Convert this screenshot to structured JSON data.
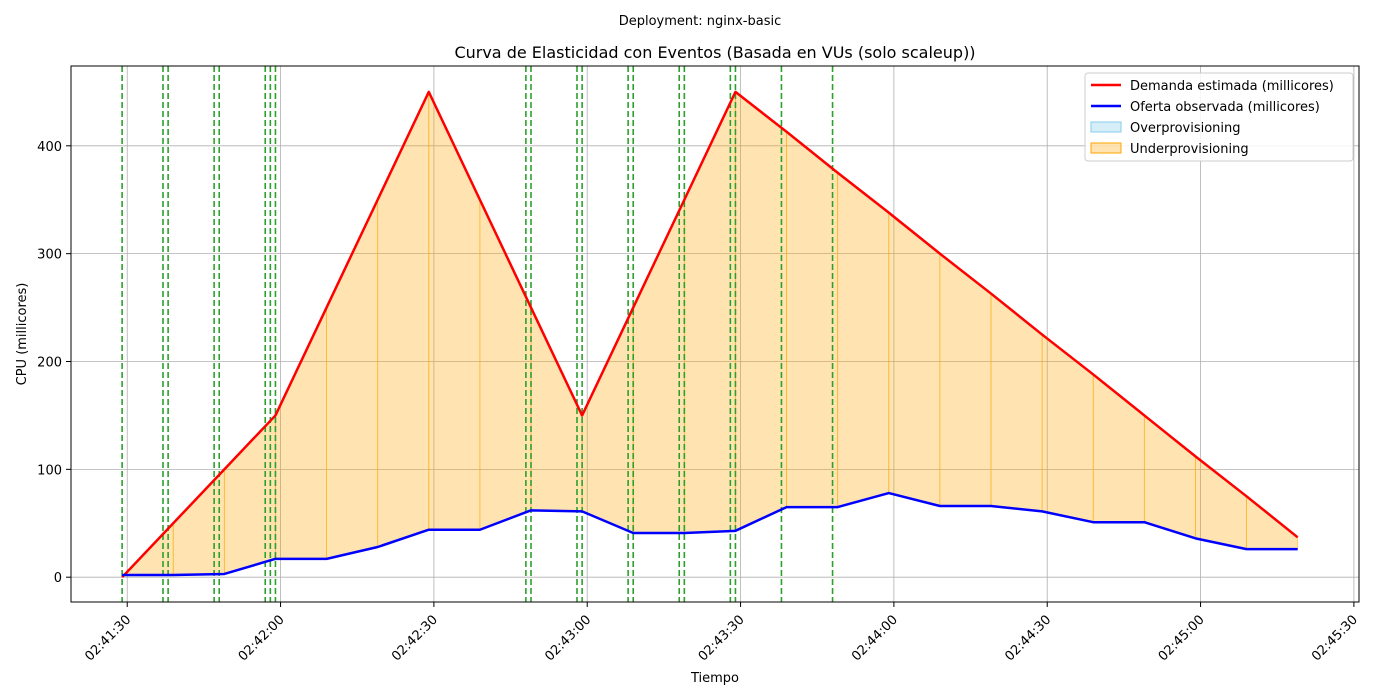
{
  "suptitle": "Deployment: nginx-basic",
  "chart_data": {
    "type": "line",
    "title": "Curva de Elasticidad con Eventos (Basada en VUs (solo scaleup))",
    "xlabel": "Tiempo",
    "ylabel": "CPU (millicores)",
    "xlim": [
      "02:41:19",
      "02:45:31"
    ],
    "ylim": [
      -23,
      474
    ],
    "grid": true,
    "legend_position": "upper right",
    "x_ticks": [
      "02:41:30",
      "02:42:00",
      "02:42:30",
      "02:43:00",
      "02:43:30",
      "02:44:00",
      "02:44:30",
      "02:45:00",
      "02:45:30"
    ],
    "y_ticks": [
      0,
      100,
      200,
      300,
      400
    ],
    "x": [
      "02:41:29",
      "02:41:39",
      "02:41:49",
      "02:41:59",
      "02:42:09",
      "02:42:19",
      "02:42:29",
      "02:42:39",
      "02:42:49",
      "02:42:59",
      "02:43:09",
      "02:43:19",
      "02:43:29",
      "02:43:39",
      "02:43:49",
      "02:43:59",
      "02:44:09",
      "02:44:19",
      "02:44:29",
      "02:44:39",
      "02:44:49",
      "02:44:59",
      "02:45:09",
      "02:45:19"
    ],
    "series": [
      {
        "name": "Demanda estimada (millicores)",
        "color": "#ff0000",
        "values": [
          0,
          50,
          100,
          150,
          250,
          350,
          450,
          350,
          250,
          150,
          250,
          350,
          450,
          413,
          375,
          338,
          300,
          263,
          225,
          188,
          150,
          112,
          75,
          37
        ]
      },
      {
        "name": "Oferta observada (millicores)",
        "color": "#0000ff",
        "values": [
          2,
          2,
          3,
          17,
          17,
          28,
          44,
          44,
          62,
          61,
          41,
          41,
          43,
          65,
          65,
          78,
          66,
          66,
          61,
          51,
          51,
          36,
          26,
          26
        ]
      }
    ],
    "fills": [
      {
        "name": "Overprovisioning",
        "color": "#87ceeb"
      },
      {
        "name": "Underprovisioning",
        "color": "#ffa500"
      }
    ],
    "event_lines": {
      "color": "#2ca02c",
      "times": [
        "02:41:29",
        "02:41:37",
        "02:41:38",
        "02:41:47",
        "02:41:48",
        "02:41:57",
        "02:41:58",
        "02:41:59",
        "02:42:48",
        "02:42:49",
        "02:42:58",
        "02:42:59",
        "02:43:08",
        "02:43:09",
        "02:43:18",
        "02:43:19",
        "02:43:28",
        "02:43:29",
        "02:43:38",
        "02:43:48"
      ]
    }
  }
}
